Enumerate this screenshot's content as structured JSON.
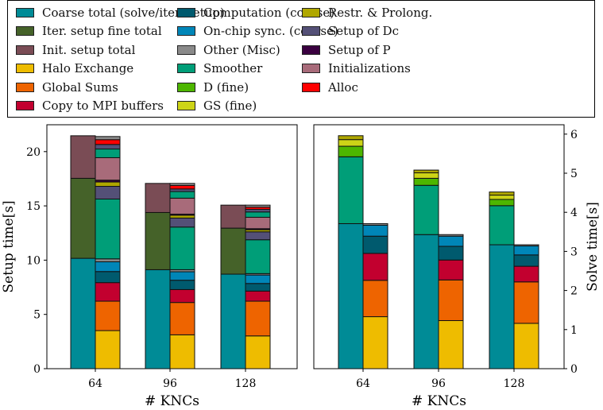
{
  "legend": [
    {
      "label": "Coarse total (solve/iter. setup)",
      "color": "#008b96"
    },
    {
      "label": "Iter. setup fine total",
      "color": "#456229"
    },
    {
      "label": "Init. setup total",
      "color": "#7a4c55"
    },
    {
      "label": "Halo Exchange",
      "color": "#eebc00"
    },
    {
      "label": "Global Sums",
      "color": "#ee6400"
    },
    {
      "label": "Copy to MPI buffers",
      "color": "#c2002f"
    },
    {
      "label": "Computation (coarse)",
      "color": "#005a6e"
    },
    {
      "label": "On-chip sync. (coarse)",
      "color": "#0086b8"
    },
    {
      "label": "Other (Misc)",
      "color": "#8a8a8a"
    },
    {
      "label": "Smoother",
      "color": "#009e78"
    },
    {
      "label": "D (fine)",
      "color": "#4db600"
    },
    {
      "label": "GS (fine)",
      "color": "#cdd417"
    },
    {
      "label": "Restr. & Prolong.",
      "color": "#afa700"
    },
    {
      "label": "Setup of Dc",
      "color": "#545077"
    },
    {
      "label": "Setup of P",
      "color": "#3a0040"
    },
    {
      "label": "Initializations",
      "color": "#a86b7a"
    },
    {
      "label": "Alloc",
      "color": "#ff0000"
    }
  ],
  "chart_data": [
    {
      "type": "bar",
      "stacked": true,
      "xlabel": "# KNCs",
      "ylabel": "Setup time[s]",
      "yaxis_side": "left",
      "ylim": [
        0,
        22.5
      ],
      "yticks": [
        0,
        5,
        10,
        15,
        20
      ],
      "categories": [
        "64",
        "96",
        "128"
      ],
      "columns": [
        {
          "segments": [
            {
              "name": "Coarse total (solve/iter. setup)",
              "values": [
                10.17,
                9.12,
                8.71
              ]
            },
            {
              "name": "Iter. setup fine total",
              "values": [
                7.37,
                5.27,
                4.24
              ]
            },
            {
              "name": "Init. setup total",
              "values": [
                3.92,
                2.68,
                2.12
              ]
            }
          ]
        },
        {
          "segments": [
            {
              "name": "Halo Exchange",
              "values": [
                3.51,
                3.12,
                3.02
              ]
            },
            {
              "name": "Global Sums",
              "values": [
                2.71,
                2.98,
                3.2
              ]
            },
            {
              "name": "Copy to MPI buffers",
              "values": [
                1.71,
                1.19,
                0.93
              ]
            },
            {
              "name": "Computation (coarse)",
              "values": [
                1.02,
                0.86,
                0.7
              ]
            },
            {
              "name": "On-chip sync. (coarse)",
              "values": [
                0.9,
                0.78,
                0.78
              ]
            },
            {
              "name": "Other (Misc)",
              "values": [
                0.27,
                0.19,
                0.13
              ]
            },
            {
              "name": "Smoother",
              "values": [
                5.51,
                3.93,
                3.12
              ]
            },
            {
              "name": "Setup of Dc",
              "values": [
                1.17,
                0.83,
                0.73
              ]
            },
            {
              "name": "Restr. & Prolong.",
              "values": [
                0.4,
                0.26,
                0.19
              ]
            },
            {
              "name": "Setup of P",
              "values": [
                0.17,
                0.1,
                0.1
              ]
            },
            {
              "name": "Initializations",
              "values": [
                2.07,
                1.47,
                1.05
              ]
            },
            {
              "name": "Smoother",
              "values": [
                0.8,
                0.61,
                0.49
              ]
            },
            {
              "name": "Setup of Dc",
              "values": [
                0.42,
                0.24,
                0.24
              ]
            },
            {
              "name": "Alloc",
              "values": [
                0.44,
                0.32,
                0.2
              ]
            },
            {
              "name": "Other (Misc)",
              "values": [
                0.29,
                0.19,
                0.19
              ]
            }
          ]
        }
      ]
    },
    {
      "type": "bar",
      "stacked": true,
      "xlabel": "# KNCs",
      "ylabel": "Solve time[s]",
      "yaxis_side": "right",
      "ylim": [
        0,
        6.2
      ],
      "yticks": [
        0,
        1,
        2,
        3,
        4,
        5,
        6
      ],
      "categories": [
        "64",
        "96",
        "128"
      ],
      "columns": [
        {
          "segments": [
            {
              "name": "Coarse total (solve/iter. setup)",
              "values": [
                3.71,
                3.43,
                3.17
              ]
            },
            {
              "name": "Smoother",
              "values": [
                1.71,
                1.26,
                1.0
              ]
            },
            {
              "name": "D (fine)",
              "values": [
                0.27,
                0.18,
                0.16
              ]
            },
            {
              "name": "GS (fine)",
              "values": [
                0.17,
                0.14,
                0.11
              ]
            },
            {
              "name": "Restr. & Prolong.",
              "values": [
                0.1,
                0.07,
                0.08
              ]
            }
          ]
        },
        {
          "segments": [
            {
              "name": "Halo Exchange",
              "values": [
                1.33,
                1.23,
                1.16
              ]
            },
            {
              "name": "Global Sums",
              "values": [
                0.93,
                1.04,
                1.06
              ]
            },
            {
              "name": "Copy to MPI buffers",
              "values": [
                0.69,
                0.51,
                0.4
              ]
            },
            {
              "name": "Computation (coarse)",
              "values": [
                0.44,
                0.35,
                0.29
              ]
            },
            {
              "name": "On-chip sync. (coarse)",
              "values": [
                0.28,
                0.26,
                0.23
              ]
            },
            {
              "name": "Other (Misc)",
              "values": [
                0.04,
                0.04,
                0.03
              ]
            }
          ]
        }
      ]
    }
  ]
}
